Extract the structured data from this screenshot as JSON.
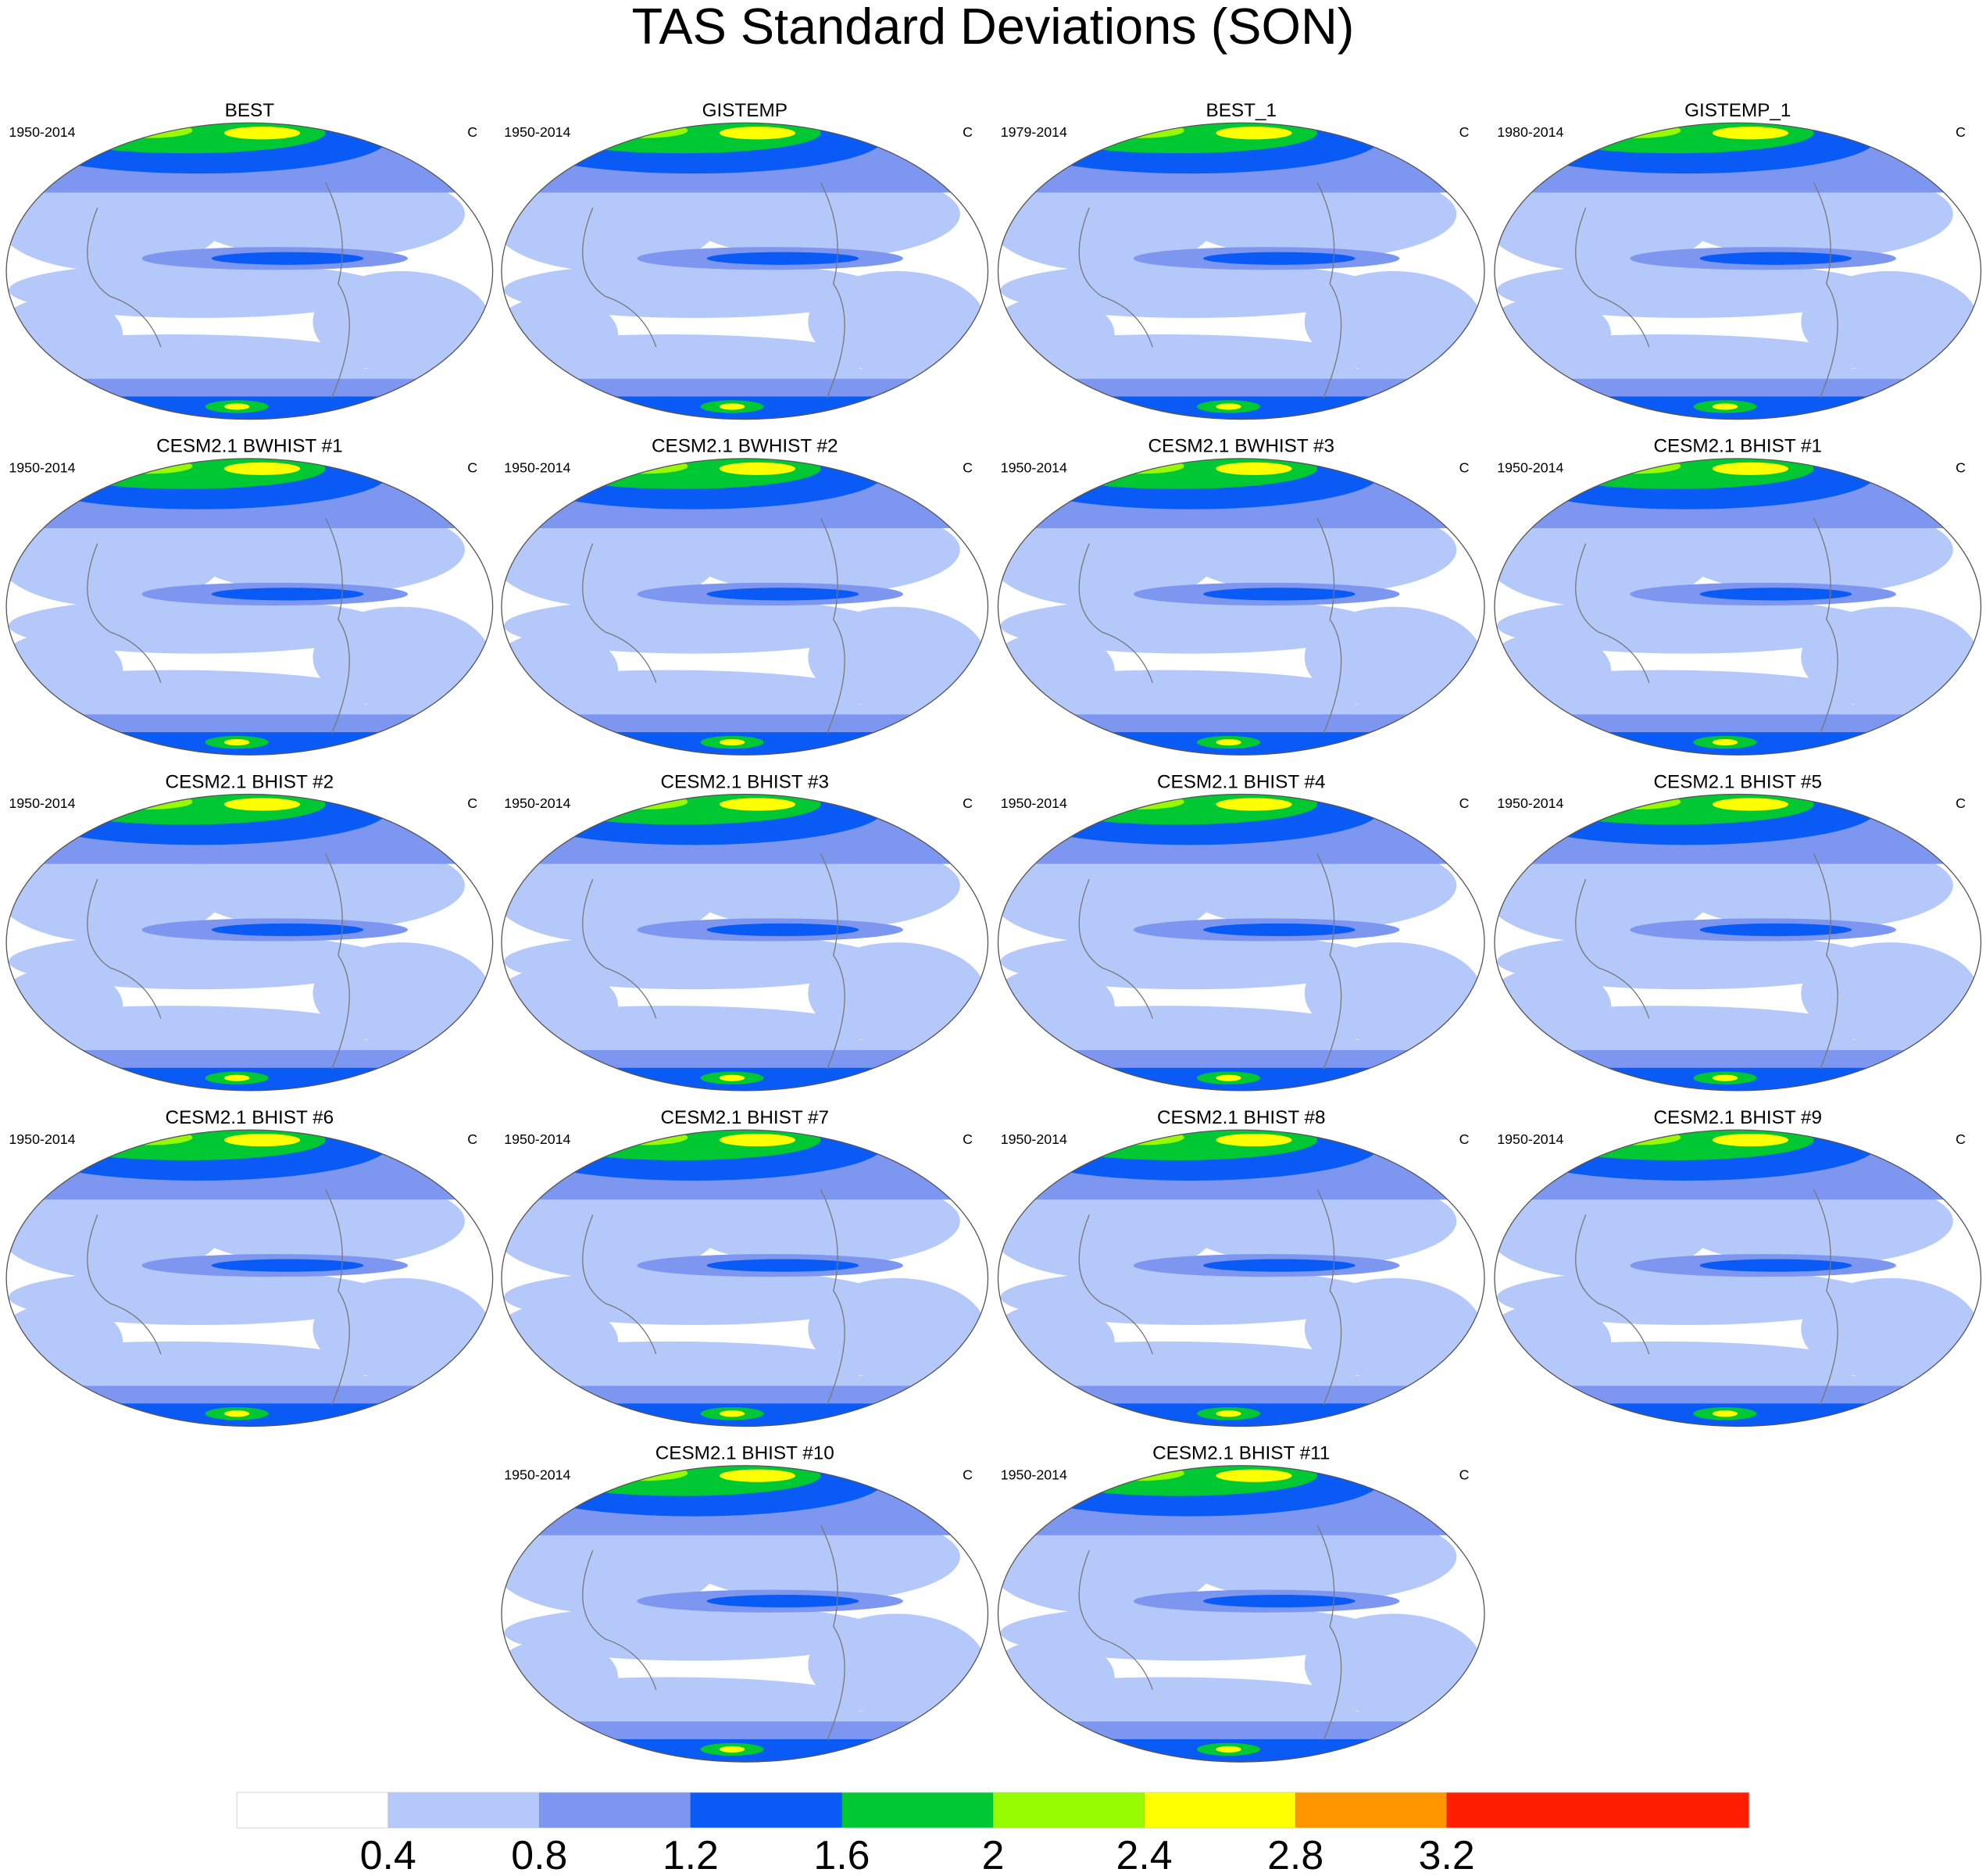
{
  "title": "TAS Standard Deviations (SON)",
  "panels": [
    {
      "title": "BEST",
      "period": "1950-2014",
      "units": "C"
    },
    {
      "title": "GISTEMP",
      "period": "1950-2014",
      "units": "C"
    },
    {
      "title": "BEST_1",
      "period": "1979-2014",
      "units": "C"
    },
    {
      "title": "GISTEMP_1",
      "period": "1980-2014",
      "units": "C"
    },
    {
      "title": "CESM2.1 BWHIST #1",
      "period": "1950-2014",
      "units": "C"
    },
    {
      "title": "CESM2.1 BWHIST #2",
      "period": "1950-2014",
      "units": "C"
    },
    {
      "title": "CESM2.1 BWHIST #3",
      "period": "1950-2014",
      "units": "C"
    },
    {
      "title": "CESM2.1 BHIST #1",
      "period": "1950-2014",
      "units": "C"
    },
    {
      "title": "CESM2.1 BHIST #2",
      "period": "1950-2014",
      "units": "C"
    },
    {
      "title": "CESM2.1 BHIST #3",
      "period": "1950-2014",
      "units": "C"
    },
    {
      "title": "CESM2.1 BHIST #4",
      "period": "1950-2014",
      "units": "C"
    },
    {
      "title": "CESM2.1 BHIST #5",
      "period": "1950-2014",
      "units": "C"
    },
    {
      "title": "CESM2.1 BHIST #6",
      "period": "1950-2014",
      "units": "C"
    },
    {
      "title": "CESM2.1 BHIST #7",
      "period": "1950-2014",
      "units": "C"
    },
    {
      "title": "CESM2.1 BHIST #8",
      "period": "1950-2014",
      "units": "C"
    },
    {
      "title": "CESM2.1 BHIST #9",
      "period": "1950-2014",
      "units": "C"
    },
    {
      "title": "CESM2.1 BHIST #10",
      "period": "1950-2014",
      "units": "C"
    },
    {
      "title": "CESM2.1 BHIST #11",
      "period": "1950-2014",
      "units": "C"
    }
  ],
  "colorbar": {
    "colors": [
      "#ffffff",
      "#b4c8fa",
      "#7d96f0",
      "#0a5af5",
      "#00c832",
      "#96fa00",
      "#ffff00",
      "#ff9600",
      "#ff1e00",
      "#ff1e00"
    ],
    "ticks": [
      0.4,
      0.8,
      1.2,
      1.6,
      2,
      2.4,
      2.8,
      3.2
    ]
  }
}
